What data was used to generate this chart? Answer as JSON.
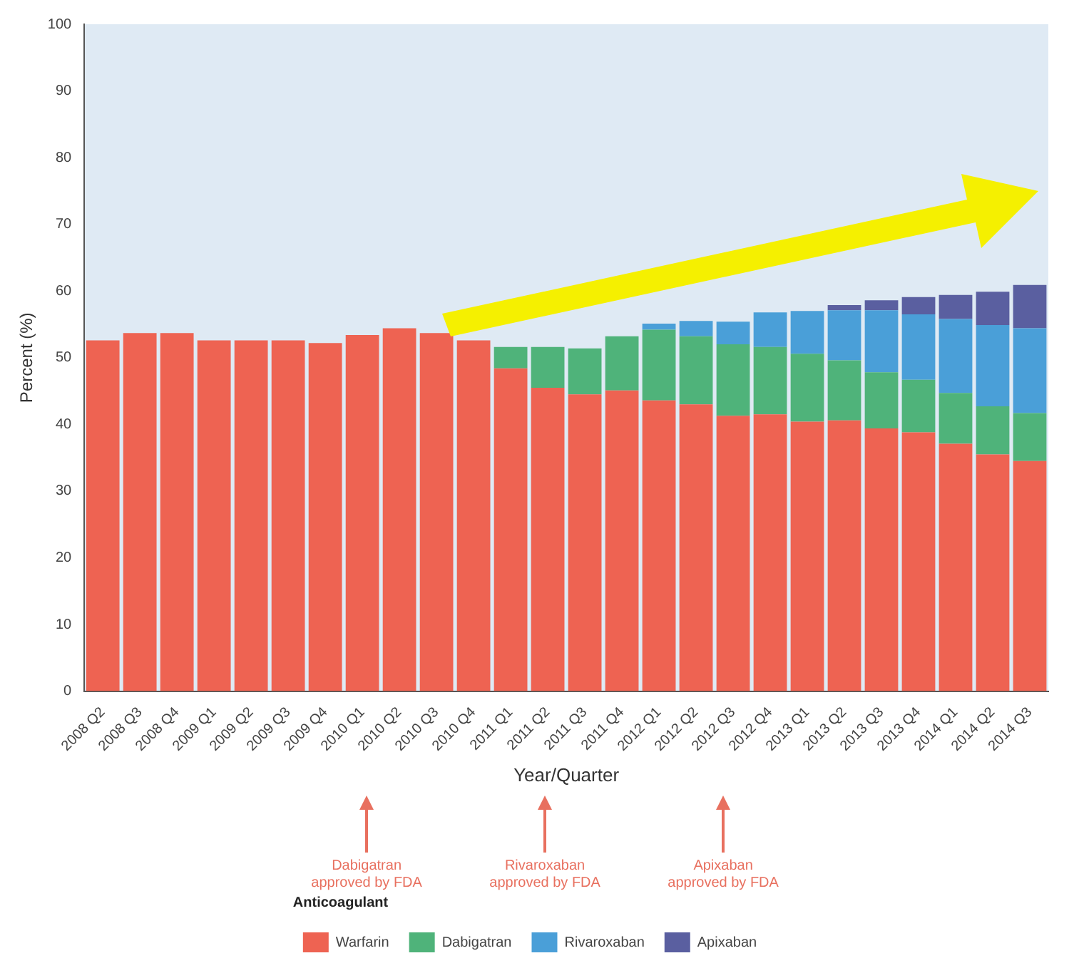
{
  "chart_data": {
    "type": "bar",
    "stacked": true,
    "xlabel": "Year/Quarter",
    "ylabel": "Percent (%)",
    "legend_title": "Anticoagulant",
    "legend": "bottom",
    "grid": false,
    "categories": [
      "2008 Q2",
      "2008 Q3",
      "2008 Q4",
      "2009 Q1",
      "2009 Q2",
      "2009 Q3",
      "2009 Q4",
      "2010 Q1",
      "2010 Q2",
      "2010 Q3",
      "2010 Q4",
      "2011 Q1",
      "2011 Q2",
      "2011 Q3",
      "2011 Q4",
      "2012 Q1",
      "2012 Q2",
      "2012 Q3",
      "2012 Q4",
      "2013 Q1",
      "2013 Q2",
      "2013 Q3",
      "2013 Q4",
      "2014 Q1",
      "2014 Q2",
      "2014 Q3"
    ],
    "ylim": [
      0,
      100
    ],
    "yticks": [
      0,
      10,
      20,
      30,
      40,
      50,
      60,
      70,
      80,
      90,
      100
    ],
    "series": [
      {
        "name": "Warfarin",
        "color": "#ee6352",
        "values": [
          52.6,
          53.7,
          53.7,
          52.6,
          52.6,
          52.6,
          52.2,
          53.4,
          54.4,
          53.7,
          52.6,
          48.4,
          45.5,
          44.5,
          45.1,
          43.6,
          43.0,
          41.3,
          41.5,
          40.4,
          40.6,
          39.4,
          38.8,
          37.1,
          35.5,
          34.5
        ]
      },
      {
        "name": "Dabigatran",
        "color": "#4fb37a",
        "values": [
          null,
          null,
          null,
          null,
          null,
          null,
          null,
          null,
          null,
          null,
          null,
          3.2,
          6.1,
          6.9,
          8.1,
          10.6,
          10.2,
          10.7,
          10.1,
          10.2,
          9.0,
          8.4,
          7.9,
          7.6,
          7.2,
          7.2
        ]
      },
      {
        "name": "Rivaroxaban",
        "color": "#4a9fd8",
        "values": [
          null,
          null,
          null,
          null,
          null,
          null,
          null,
          null,
          null,
          null,
          null,
          null,
          null,
          null,
          null,
          0.9,
          2.3,
          3.4,
          5.2,
          6.4,
          7.5,
          9.3,
          9.8,
          11.1,
          12.2,
          12.7
        ]
      },
      {
        "name": "Apixaban",
        "color": "#5a5fa0",
        "values": [
          null,
          null,
          null,
          null,
          null,
          null,
          null,
          null,
          null,
          null,
          null,
          null,
          null,
          null,
          null,
          null,
          null,
          null,
          null,
          null,
          0.8,
          1.5,
          2.6,
          3.6,
          5.0,
          6.5
        ]
      }
    ],
    "annotations": [
      "Dabigatran approved by FDA",
      "Rivaroxaban approved by FDA",
      "Apixaban approved by FDA"
    ]
  }
}
